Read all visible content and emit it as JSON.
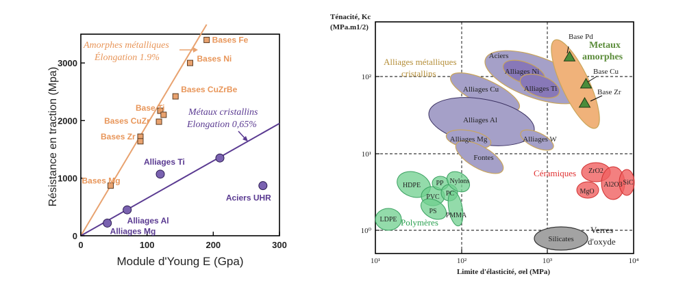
{
  "chart_data": [
    {
      "type": "scatter",
      "xlabel": "Module d'Young E (Gpa)",
      "ylabel": "Résistance en traction (Mpa)",
      "xlim": [
        0,
        300
      ],
      "ylim": [
        0,
        3500
      ],
      "xticks": [
        0,
        100,
        200,
        300
      ],
      "yticks": [
        0,
        1000,
        2000,
        3000
      ],
      "grid": false,
      "colors": {
        "amorphous": "#e8a26f",
        "amorphous_text": "#e8965a",
        "crystalline": "#5a3a91",
        "crystalline_fill": "#7a62b0"
      },
      "series": [
        {
          "name": "Amorphes métalliques",
          "annotation": [
            "Amorphes métalliques",
            "Élongation 1.9%"
          ],
          "marker": "square",
          "fit_line": {
            "slope": 19.3,
            "xrange": [
              0,
              190
            ]
          },
          "points": [
            {
              "label": "Bases Fe",
              "x": 190,
              "y": 3400
            },
            {
              "label": "Bases Ni",
              "x": 165,
              "y": 3000
            },
            {
              "label": "Bases CuZrBe",
              "x": 143,
              "y": 2420
            },
            {
              "label": "Base Ti",
              "x": 120,
              "y": 2170
            },
            {
              "label": "",
              "x": 125,
              "y": 2100
            },
            {
              "label": "Bases CuZr",
              "x": 118,
              "y": 1980
            },
            {
              "label": "Bases Zr",
              "x": 90,
              "y": 1720
            },
            {
              "label": "",
              "x": 90,
              "y": 1640
            },
            {
              "label": "Bases Mg",
              "x": 45,
              "y": 870
            }
          ]
        },
        {
          "name": "Métaux cristallins",
          "annotation": [
            "Métaux cristallins",
            "Elongation 0,65%"
          ],
          "marker": "circle",
          "fit_line": {
            "slope": 6.5,
            "xrange": [
              0,
              300
            ]
          },
          "points": [
            {
              "label": "Alliages Ti",
              "x": 120,
              "y": 1070
            },
            {
              "label": "",
              "x": 210,
              "y": 1350
            },
            {
              "label": "Aciers UHR",
              "x": 275,
              "y": 870
            },
            {
              "label": "Alliages Al",
              "x": 70,
              "y": 450
            },
            {
              "label": "Alliages Mg",
              "x": 40,
              "y": 220
            }
          ]
        }
      ]
    },
    {
      "type": "scatter",
      "xlabel": "Limite d'élasticité, σel (MPa)",
      "ylabel": [
        "Ténacité, Kc",
        "(MPa.m1/2)"
      ],
      "xscale": "log",
      "yscale": "log",
      "xlim": [
        10,
        10000
      ],
      "ylim": [
        0.6,
        600
      ],
      "xticks": [
        "10¹",
        "10²",
        "10³",
        "10⁴"
      ],
      "yticks": [
        "10⁰",
        "10¹",
        "10²"
      ],
      "grid": "dashed",
      "colors": {
        "crystalline_fill": "#a5a0c8",
        "crystalline_stroke": "#c9a55a",
        "crystalline_text": "#b58f3a",
        "amorphous_fill": "#f0b27a",
        "amorphous_text": "#5b8c3a",
        "triangle": "#4a8c3a",
        "polymer": "#6fcf8e",
        "polymer_text": "#2aa050",
        "ceramic": "#f06060",
        "ceramic_text": "#e03030",
        "glass": "#a3a3a3"
      },
      "groups": [
        {
          "name": "Alliages métalliques cristallins",
          "label": [
            "Alliages métalliques",
            "cristallins"
          ],
          "items": [
            "Aciers",
            "Alliages Ni",
            "Alliages Ti",
            "Alliages Cu",
            "Alliages Al",
            "Alliages Mg",
            "Alliages W",
            "Fontes"
          ]
        },
        {
          "name": "Metaux amorphes",
          "label": [
            "Metaux",
            "amorphes"
          ],
          "items": [
            {
              "label": "Base Pd",
              "x": 1800,
              "y": 180
            },
            {
              "label": "Base Cu",
              "x": 2800,
              "y": 80
            },
            {
              "label": "Base Zr",
              "x": 2700,
              "y": 45
            }
          ]
        },
        {
          "name": "Polymères",
          "label": [
            "Polymères"
          ],
          "items": [
            "LDPE",
            "HDPE",
            "PP",
            "Nylons",
            "PVC",
            "PC",
            "PS",
            "PMMA"
          ]
        },
        {
          "name": "Céramiques",
          "label": [
            "Céramiques"
          ],
          "items": [
            "ZrO2",
            "MgO",
            "Al2O3",
            "SiC"
          ]
        },
        {
          "name": "Verres d'oxyde",
          "label": [
            "Verres",
            "d'oxyde"
          ],
          "items": [
            "Silicates"
          ]
        }
      ]
    }
  ]
}
